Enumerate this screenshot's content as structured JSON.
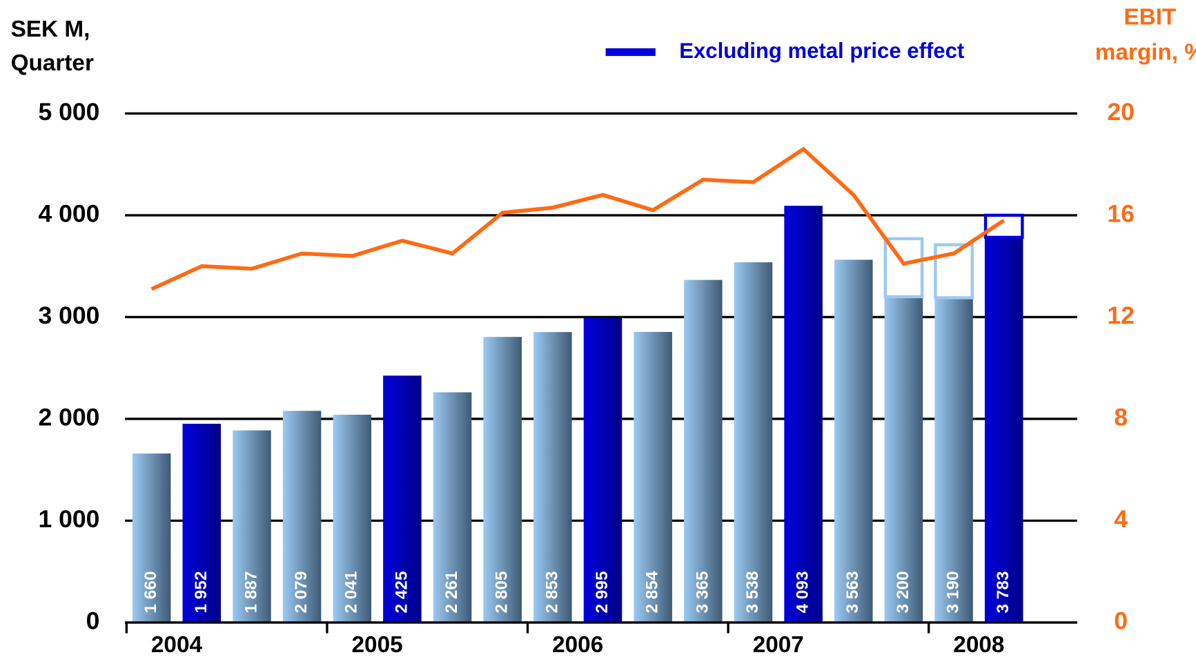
{
  "chart_data": {
    "type": "bar",
    "ylabel": [
      "SEK M,",
      "Quarter"
    ],
    "y2label": [
      "EBIT",
      "margin, %"
    ],
    "groups": [
      {
        "label": "2004",
        "size": 4
      },
      {
        "label": "2005",
        "size": 4
      },
      {
        "label": "2006",
        "size": 4
      },
      {
        "label": "2007",
        "size": 4
      },
      {
        "label": "2008",
        "size": 2
      }
    ],
    "categories": [
      null,
      null,
      null,
      null,
      null,
      null,
      null,
      null,
      null,
      null,
      null,
      null,
      null,
      null,
      null,
      null,
      null,
      null
    ],
    "values": [
      1660,
      1952,
      1887,
      2079,
      2041,
      2425,
      2261,
      2805,
      2853,
      2995,
      2854,
      3365,
      3538,
      4093,
      3563,
      3200,
      3190,
      3783
    ],
    "value_labels": [
      "1 660",
      "1 952",
      "1 887",
      "2 079",
      "2 041",
      "2 425",
      "2 261",
      "2 805",
      "2 853",
      "2 995",
      "2 854",
      "3 365",
      "3 538",
      "4 093",
      "3 563",
      "3 200",
      "3 190",
      "3 783"
    ],
    "colors": [
      "#9ccaf2",
      "#0000dd",
      "#9ccaf2",
      "#9ccaf2",
      "#9ccaf2",
      "#0000dd",
      "#9ccaf2",
      "#9ccaf2",
      "#9ccaf2",
      "#0000dd",
      "#9ccaf2",
      "#9ccaf2",
      "#9ccaf2",
      "#0000dd",
      "#9ccaf2",
      "#9ccaf2",
      "#9ccaf2",
      "#0000dd"
    ],
    "series": [
      {
        "name": "Excluding metal price effect",
        "color": "#0000dd",
        "kind": "outline",
        "values": [
          null,
          null,
          null,
          null,
          null,
          null,
          null,
          null,
          null,
          null,
          null,
          null,
          null,
          null,
          null,
          3770,
          3710,
          4000
        ],
        "colors": [
          null,
          null,
          null,
          null,
          null,
          null,
          null,
          null,
          null,
          null,
          null,
          null,
          null,
          null,
          null,
          "#9ccaf2",
          "#9ccaf2",
          "#0000dd"
        ]
      },
      {
        "name": "EBIT margin",
        "color": "#ff6a13",
        "kind": "line",
        "axis": "y2",
        "values": [
          13.1,
          14.0,
          13.9,
          14.5,
          14.4,
          15.0,
          14.5,
          16.1,
          16.3,
          16.8,
          16.2,
          17.4,
          17.3,
          18.6,
          16.8,
          14.1,
          14.5,
          15.8
        ]
      }
    ],
    "ylim": [
      0,
      5000
    ],
    "yticks": [
      0,
      {
        "value": 1000,
        "label": "1 000"
      },
      {
        "value": 2000,
        "label": "2 000"
      },
      {
        "value": 3000,
        "label": "3 000"
      },
      {
        "value": 4000,
        "label": "4 000"
      },
      {
        "value": 5000,
        "label": "5 000"
      }
    ],
    "y2lim": [
      0,
      20
    ],
    "y2ticks": [
      0,
      4,
      8,
      12,
      16,
      20
    ],
    "y2color": "#ff6a13",
    "grid": true
  }
}
